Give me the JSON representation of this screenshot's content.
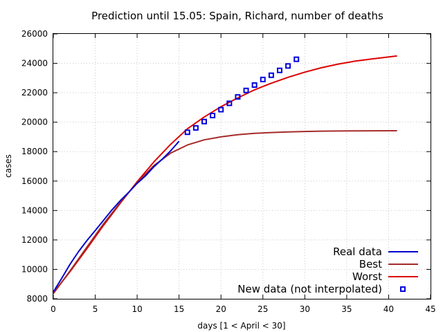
{
  "chart_data": {
    "type": "line",
    "title": "Prediction until 15.05: Spain, Richard, number of deaths",
    "xlabel": "days [1 < April < 30]",
    "ylabel": "cases",
    "xlim": [
      0,
      45
    ],
    "ylim": [
      8000,
      26000
    ],
    "xticks": [
      0,
      5,
      10,
      15,
      20,
      25,
      30,
      35,
      40,
      45
    ],
    "yticks": [
      8000,
      10000,
      12000,
      14000,
      16000,
      18000,
      20000,
      22000,
      24000,
      26000
    ],
    "grid": true,
    "legend_position": "bottom-right",
    "series": [
      {
        "name": "Real data",
        "kind": "line",
        "color": "#0000cc",
        "points": [
          [
            0,
            8464
          ],
          [
            1,
            9387
          ],
          [
            2,
            10348
          ],
          [
            3,
            11198
          ],
          [
            4,
            11947
          ],
          [
            5,
            12641
          ],
          [
            6,
            13341
          ],
          [
            7,
            14045
          ],
          [
            8,
            14673
          ],
          [
            9,
            15238
          ],
          [
            10,
            15843
          ],
          [
            11,
            16353
          ],
          [
            12,
            16972
          ],
          [
            13,
            17489
          ],
          [
            14,
            18056
          ],
          [
            15,
            18708
          ]
        ]
      },
      {
        "name": "Best",
        "kind": "line",
        "color": "#a52a2a",
        "points": [
          [
            0,
            8350
          ],
          [
            2,
            9900
          ],
          [
            4,
            11500
          ],
          [
            6,
            13100
          ],
          [
            8,
            14550
          ],
          [
            10,
            15900
          ],
          [
            12,
            17050
          ],
          [
            14,
            17900
          ],
          [
            16,
            18450
          ],
          [
            18,
            18800
          ],
          [
            20,
            19000
          ],
          [
            22,
            19150
          ],
          [
            24,
            19240
          ],
          [
            26,
            19300
          ],
          [
            28,
            19340
          ],
          [
            30,
            19370
          ],
          [
            32,
            19390
          ],
          [
            34,
            19400
          ],
          [
            36,
            19410
          ],
          [
            38,
            19415
          ],
          [
            41,
            19420
          ]
        ]
      },
      {
        "name": "Worst",
        "kind": "line",
        "color": "#dd0000",
        "points": [
          [
            0,
            8400
          ],
          [
            2,
            9850
          ],
          [
            4,
            11400
          ],
          [
            6,
            13000
          ],
          [
            8,
            14500
          ],
          [
            10,
            15950
          ],
          [
            12,
            17300
          ],
          [
            14,
            18500
          ],
          [
            16,
            19550
          ],
          [
            18,
            20350
          ],
          [
            20,
            21050
          ],
          [
            22,
            21650
          ],
          [
            24,
            22200
          ],
          [
            26,
            22650
          ],
          [
            28,
            23050
          ],
          [
            30,
            23400
          ],
          [
            32,
            23700
          ],
          [
            34,
            23950
          ],
          [
            36,
            24150
          ],
          [
            38,
            24300
          ],
          [
            41,
            24500
          ]
        ]
      },
      {
        "name": "New data (not interpolated)",
        "kind": "points",
        "color": "#0000dd",
        "points": [
          [
            16,
            19315
          ],
          [
            17,
            19613
          ],
          [
            18,
            20043
          ],
          [
            19,
            20453
          ],
          [
            20,
            20852
          ],
          [
            21,
            21282
          ],
          [
            22,
            21717
          ],
          [
            23,
            22157
          ],
          [
            24,
            22524
          ],
          [
            25,
            22902
          ],
          [
            26,
            23190
          ],
          [
            27,
            23521
          ],
          [
            28,
            23822
          ],
          [
            29,
            24275
          ]
        ]
      }
    ]
  }
}
